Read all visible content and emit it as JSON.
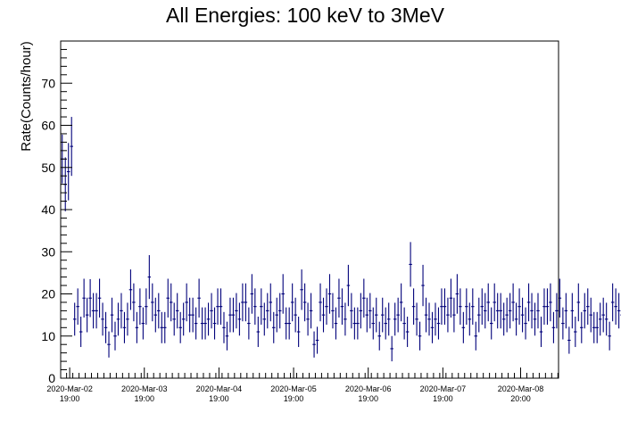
{
  "chart_data": {
    "type": "scatter",
    "title": "All Energies:  100 keV to 3MeV",
    "xlabel": "",
    "ylabel": "Rate(Counts/hour)",
    "ylim": [
      0,
      80
    ],
    "y_ticks": [
      0,
      10,
      20,
      30,
      40,
      50,
      60,
      70
    ],
    "grid": false,
    "legend": "none",
    "x_unit": "hours since 2020-Mar-02 00:00",
    "xlim": [
      16.1,
      176.2
    ],
    "x_ticks": [
      {
        "x": 19,
        "label_date": "2020-Mar-02",
        "label_time": "19:00"
      },
      {
        "x": 43,
        "label_date": "2020-Mar-03",
        "label_time": "19:00"
      },
      {
        "x": 67,
        "label_date": "2020-Mar-04",
        "label_time": "19:00"
      },
      {
        "x": 91,
        "label_date": "2020-Mar-05",
        "label_time": "19:00"
      },
      {
        "x": 115,
        "label_date": "2020-Mar-06",
        "label_time": "19:00"
      },
      {
        "x": 139,
        "label_date": "2020-Mar-07",
        "label_time": "19:00"
      },
      {
        "x": 164,
        "label_date": "2020-Mar-08",
        "label_time": "20:00"
      }
    ],
    "colors": {
      "series": "#00007a"
    },
    "series": [
      {
        "x_start": 16.6,
        "x_step": 1.0,
        "values": [
          52,
          46,
          49,
          55,
          14,
          17,
          11,
          19,
          15,
          19,
          16,
          16,
          19,
          14,
          12,
          8,
          15,
          10,
          14,
          16,
          12,
          14,
          21,
          18,
          12,
          17,
          13,
          17,
          24,
          18,
          15,
          16,
          12,
          12,
          19,
          18,
          14,
          16,
          12,
          14,
          18,
          15,
          15,
          13,
          19,
          13,
          13,
          14,
          16,
          13,
          17,
          17,
          12,
          10,
          15,
          15,
          16,
          14,
          18,
          18,
          13,
          20,
          17,
          11,
          17,
          14,
          16,
          18,
          12,
          15,
          16,
          20,
          13,
          13,
          18,
          15,
          11,
          21,
          18,
          14,
          16,
          8,
          9,
          18,
          15,
          17,
          20,
          16,
          13,
          19,
          17,
          14,
          22,
          16,
          13,
          13,
          16,
          19,
          15,
          16,
          13,
          15,
          10,
          15,
          13,
          14,
          7,
          14,
          15,
          18,
          13,
          11,
          27,
          17,
          14,
          10,
          22,
          15,
          14,
          12,
          14,
          13,
          17,
          17,
          15,
          19,
          15,
          20,
          17,
          12,
          17,
          14,
          17,
          10,
          15,
          17,
          16,
          18,
          13,
          18,
          16,
          16,
          14,
          15,
          16,
          18,
          14,
          17,
          15,
          13,
          18,
          16,
          14,
          16,
          11,
          17,
          17,
          18,
          12,
          16,
          19,
          13,
          16,
          9,
          16,
          11,
          18,
          12,
          16,
          17,
          15,
          12,
          12,
          14,
          15,
          14,
          10,
          18,
          17,
          16,
          15,
          16,
          18,
          10,
          13,
          13,
          17,
          14,
          11,
          19,
          14,
          15,
          16,
          12,
          14,
          13,
          19,
          21,
          18,
          20,
          17,
          8,
          15,
          12,
          18,
          14,
          15,
          22,
          16,
          12,
          14,
          18,
          15,
          21,
          17,
          22,
          13,
          12,
          18,
          16,
          15,
          11,
          13,
          12,
          16,
          19,
          17,
          21,
          19,
          16,
          15,
          14,
          10,
          11,
          12,
          15,
          12,
          18,
          14,
          14,
          16,
          19,
          21,
          15,
          18,
          8
        ],
        "errors": [
          5.8,
          6.4,
          6.8,
          7.0,
          3.9,
          4.3,
          3.6,
          4.6,
          4.1,
          4.5,
          4.2,
          4.2,
          4.6,
          3.9,
          3.7,
          3.1,
          4.1,
          3.4,
          3.9,
          4.2,
          3.7,
          3.9,
          4.8,
          4.5,
          3.7,
          4.3,
          3.8,
          4.3,
          5.2,
          4.5,
          4.1,
          4.2,
          3.7,
          3.7,
          4.6,
          4.5,
          3.9,
          4.2,
          3.7,
          3.9,
          4.5,
          4.1,
          4.1,
          3.8,
          4.6,
          3.8,
          3.8,
          3.9,
          4.2,
          3.8,
          4.3,
          4.3,
          3.7,
          3.4,
          4.1,
          4.1,
          4.2,
          3.9,
          4.5,
          4.5,
          3.8,
          4.7,
          4.3,
          3.6,
          4.3,
          3.9,
          4.2,
          4.5,
          3.7,
          4.1,
          4.2,
          4.7,
          3.8,
          3.8,
          4.5,
          4.1,
          3.6,
          4.8,
          4.5,
          3.9,
          4.2,
          3.1,
          3.2,
          4.5,
          4.1,
          4.3,
          4.7,
          4.2,
          3.8,
          4.6,
          4.3,
          3.9,
          4.9,
          4.2,
          3.8,
          3.8,
          4.2,
          4.6,
          4.1,
          4.2,
          3.8,
          4.1,
          3.4,
          4.1,
          3.8,
          3.9,
          3.0,
          3.9,
          4.1,
          4.5,
          3.8,
          3.6,
          5.3,
          4.3,
          3.9,
          3.4,
          4.9,
          4.1,
          3.9,
          3.7,
          3.9,
          3.8,
          4.3,
          4.3,
          4.1,
          4.6,
          4.1,
          4.7,
          4.3,
          3.7,
          4.3,
          3.9,
          4.3,
          3.4,
          4.1,
          4.3,
          4.2,
          4.5,
          3.8,
          4.5,
          4.2,
          4.2,
          3.9,
          4.1,
          4.2,
          4.5,
          3.9,
          4.3,
          4.1,
          3.8,
          4.5,
          4.2,
          3.9,
          4.2,
          3.6,
          4.3,
          4.3,
          4.5,
          3.7,
          4.2,
          4.6,
          3.8,
          4.2,
          3.2,
          4.2,
          3.6,
          4.5,
          3.7,
          4.2,
          4.3,
          4.1,
          3.7,
          3.7,
          3.9,
          4.1,
          3.9,
          3.4,
          4.5,
          4.3,
          4.2,
          4.1,
          4.2,
          4.5,
          3.4,
          3.8,
          3.8,
          4.3,
          3.9,
          3.6,
          4.6,
          3.9,
          4.1,
          4.2,
          3.7,
          3.9,
          3.8,
          4.6,
          4.8,
          4.5,
          4.7,
          4.3,
          3.1,
          4.1,
          3.7,
          4.5,
          3.9,
          4.1,
          4.9,
          4.2,
          3.7,
          3.9,
          4.5,
          4.1,
          4.8,
          4.3,
          4.9,
          3.8,
          3.7,
          4.5,
          4.2,
          4.1,
          3.6,
          3.8,
          3.7,
          4.2,
          4.6,
          4.3,
          4.8,
          4.6,
          4.2,
          4.1,
          3.9,
          3.4,
          3.6,
          3.7,
          4.1,
          3.7,
          4.5,
          3.9,
          3.9,
          4.2,
          4.6,
          4.8,
          4.1,
          4.5,
          4.5
        ]
      }
    ]
  }
}
